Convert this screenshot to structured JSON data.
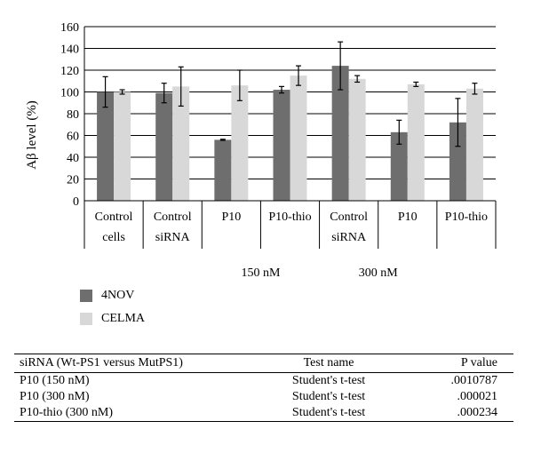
{
  "chart_data": {
    "type": "bar",
    "ylabel": "Aβ level (%)",
    "ylim": [
      0,
      160
    ],
    "yticks": [
      0,
      20,
      40,
      60,
      80,
      100,
      120,
      140,
      160
    ],
    "grid": true,
    "categories": [
      "Control cells",
      "Control siRNA",
      "P10",
      "P10-thio",
      "Control siRNA",
      "P10",
      "P10-thio"
    ],
    "category_lines": [
      [
        "Control",
        "cells"
      ],
      [
        "Control",
        "siRNA"
      ],
      [
        "P10"
      ],
      [
        "P10-thio"
      ],
      [
        "Control",
        "siRNA"
      ],
      [
        "P10"
      ],
      [
        "P10-thio"
      ]
    ],
    "group_labels": [
      {
        "text": "150 nM",
        "categories": [
          2,
          3
        ]
      },
      {
        "text": "300 nM",
        "categories": [
          4,
          5
        ]
      }
    ],
    "series": [
      {
        "name": "4NOV",
        "color": "#6e6e6e",
        "values": [
          100,
          99,
          56,
          102,
          124,
          63,
          72
        ],
        "errors": [
          14,
          9,
          0.5,
          3,
          22,
          11,
          22
        ]
      },
      {
        "name": "CELMA",
        "color": "#d8d8d8",
        "values": [
          100,
          105,
          106,
          115,
          112,
          107,
          103
        ],
        "errors": [
          2,
          18,
          14,
          9,
          3,
          2,
          5
        ]
      }
    ],
    "legend_position": "bottom-left"
  },
  "stats_table": {
    "headers": [
      "siRNA (Wt-PS1 versus MutPS1)",
      "Test name",
      "P value"
    ],
    "rows": [
      [
        "P10 (150 nM)",
        "Student's t-test",
        ".0010787"
      ],
      [
        "P10 (300 nM)",
        "Student's t-test",
        ".000021"
      ],
      [
        "P10-thio (300 nM)",
        "Student's t-test",
        ".000234"
      ]
    ]
  }
}
